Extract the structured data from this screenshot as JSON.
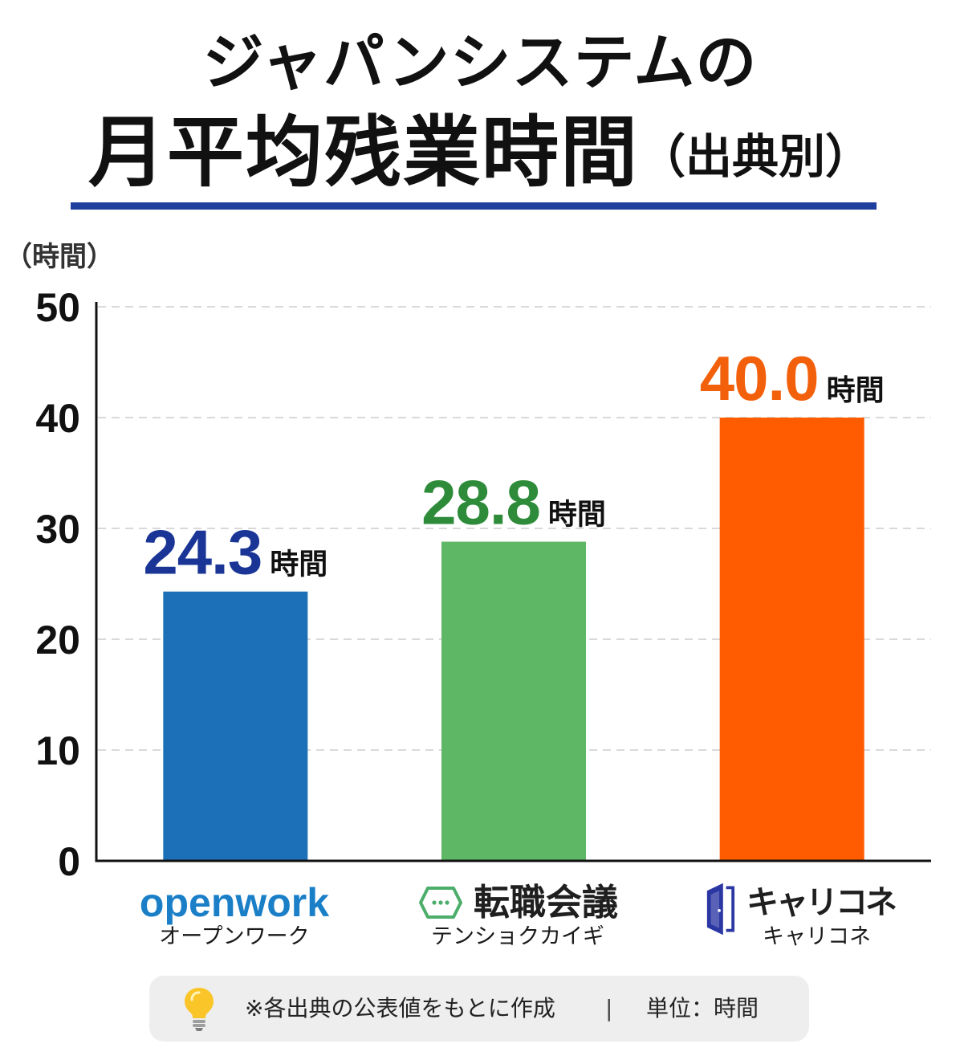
{
  "header": {
    "title_line1": "ジャパンシステムの",
    "title_line2": "月平均残業時間",
    "title_line2_note": "（出典別）",
    "underline_color": "#1f3f9f"
  },
  "chart_data": {
    "type": "bar",
    "categories": [
      "openwork",
      "転職会議",
      "キャリコネ"
    ],
    "category_readings": [
      "オープンワーク",
      "テンショクカイギ",
      "キャリコネ"
    ],
    "values": [
      24.3,
      28.8,
      40.0
    ],
    "value_labels": [
      "24.3",
      "28.8",
      "40.0"
    ],
    "value_unit": "時間",
    "ylabel": "（時間）",
    "ylim": [
      0,
      50
    ],
    "yticks": [
      0,
      10,
      20,
      30,
      40,
      50
    ],
    "grid": true,
    "bar_colors": [
      "#1b70b8",
      "#5db764",
      "#ff5b00"
    ],
    "value_label_colors": [
      "#1a3596",
      "#2e8b3a",
      "#f3600c"
    ],
    "category_colors": [
      "#1a7fc7",
      "#1f1f1f",
      "#1f1f1f"
    ],
    "category_icons": [
      null,
      "speech-bubble-icon",
      "door-icon"
    ],
    "category_icon_colors": [
      null,
      "#4cae6a",
      "#2b37a3"
    ]
  },
  "footer": {
    "icon": "lightbulb-icon",
    "note": "※各出典の公表値をもとに作成",
    "separator": "|",
    "unit_note": "単位：時間"
  }
}
